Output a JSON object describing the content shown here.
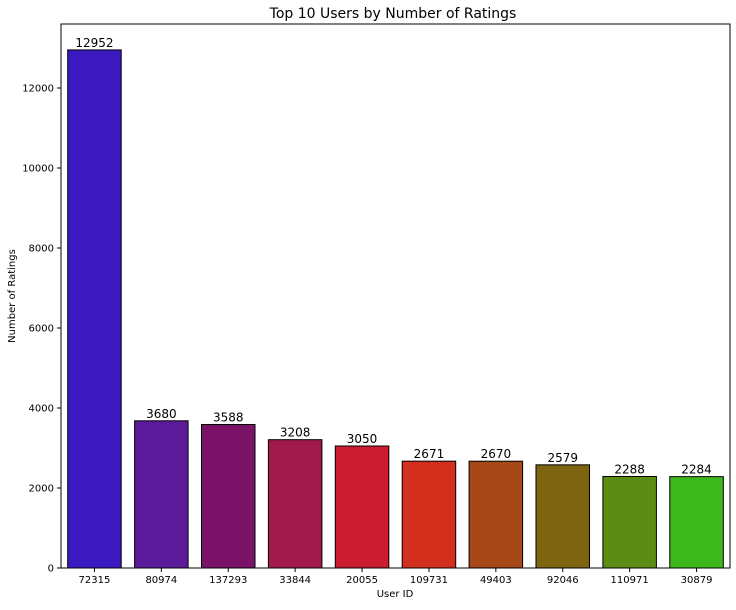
{
  "chart_data": {
    "type": "bar",
    "title": "Top 10 Users by Number of Ratings",
    "xlabel": "User ID",
    "ylabel": "Number of Ratings",
    "categories": [
      "72315",
      "80974",
      "137293",
      "33844",
      "20055",
      "109731",
      "49403",
      "92046",
      "110971",
      "30879"
    ],
    "values": [
      12952,
      3680,
      3588,
      3208,
      3050,
      2671,
      2670,
      2579,
      2288,
      2284
    ],
    "data_labels": [
      "12952",
      "3680",
      "3588",
      "3208",
      "3050",
      "2671",
      "2670",
      "2579",
      "2288",
      "2284"
    ],
    "colors": [
      "#3a1ac0",
      "#5a1a9a",
      "#7a1268",
      "#a21a4a",
      "#cc1c30",
      "#d2301c",
      "#a64818",
      "#7e6410",
      "#5c8c14",
      "#3cb81c"
    ],
    "yticks": [
      0,
      2000,
      4000,
      6000,
      8000,
      10000,
      12000
    ],
    "ylim": [
      0,
      13600
    ],
    "grid": false,
    "legend": false
  }
}
